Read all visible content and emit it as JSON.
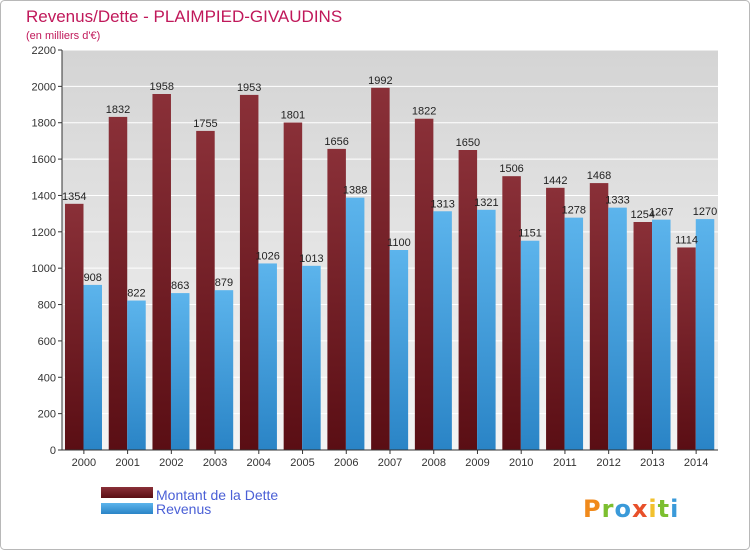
{
  "title": "Revenus/Dette - PLAIMPIED-GIVAUDINS",
  "subtitle": "(en milliers d'€)",
  "legend": {
    "items": [
      {
        "label": "Montant de la Dette",
        "color": "#7a2430"
      },
      {
        "label": "Revenus",
        "color": "#4aa3e0"
      }
    ]
  },
  "brand": {
    "letters": [
      {
        "char": "P",
        "color": "#f08a1c"
      },
      {
        "char": "r",
        "color": "#7cbf2f"
      },
      {
        "char": "o",
        "color": "#3a9ad9"
      },
      {
        "char": "x",
        "color": "#e8502a"
      },
      {
        "char": "i",
        "color": "#f2c12e"
      },
      {
        "char": "t",
        "color": "#7cbf2f"
      },
      {
        "char": "i",
        "color": "#3a9ad9"
      }
    ]
  },
  "colors": {
    "title": "#c0185a",
    "legend_text": "#4a5fd6",
    "grid": "#ffffff",
    "plot_bg_top": "#d6d6d6",
    "plot_bg_bottom": "#f2f2f2",
    "axis": "#333333"
  },
  "chart_data": {
    "type": "bar",
    "title": "Revenus/Dette - PLAIMPIED-GIVAUDINS",
    "subtitle": "(en milliers d'€)",
    "categories": [
      "2000",
      "2001",
      "2002",
      "2003",
      "2004",
      "2005",
      "2006",
      "2007",
      "2008",
      "2009",
      "2010",
      "2011",
      "2012",
      "2013",
      "2014"
    ],
    "series": [
      {
        "name": "Montant de la Dette",
        "color": "#7a2430",
        "values": [
          1354,
          1832,
          1958,
          1755,
          1953,
          1801,
          1656,
          1992,
          1822,
          1650,
          1506,
          1442,
          1468,
          1254,
          1114
        ]
      },
      {
        "name": "Revenus",
        "color": "#4aa3e0",
        "values": [
          908,
          822,
          863,
          879,
          1026,
          1013,
          1388,
          1100,
          1313,
          1321,
          1151,
          1278,
          1333,
          1267,
          1270
        ]
      }
    ],
    "ylim": [
      0,
      2200
    ],
    "yticks": [
      0,
      200,
      400,
      600,
      800,
      1000,
      1200,
      1400,
      1600,
      1800,
      2000,
      2200
    ],
    "grid": true,
    "legend_position": "bottom-left"
  }
}
